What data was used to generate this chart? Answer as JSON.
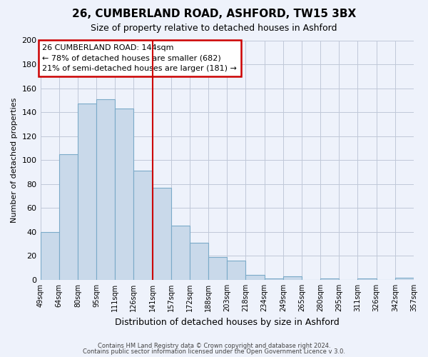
{
  "title": "26, CUMBERLAND ROAD, ASHFORD, TW15 3BX",
  "subtitle": "Size of property relative to detached houses in Ashford",
  "xlabel": "Distribution of detached houses by size in Ashford",
  "ylabel": "Number of detached properties",
  "bar_labels": [
    "49sqm",
    "64sqm",
    "80sqm",
    "95sqm",
    "111sqm",
    "126sqm",
    "141sqm",
    "157sqm",
    "172sqm",
    "188sqm",
    "203sqm",
    "218sqm",
    "234sqm",
    "249sqm",
    "265sqm",
    "280sqm",
    "295sqm",
    "311sqm",
    "326sqm",
    "342sqm",
    "357sqm"
  ],
  "bar_values": [
    40,
    105,
    147,
    151,
    143,
    91,
    77,
    45,
    31,
    19,
    16,
    4,
    1,
    3,
    0,
    1,
    0,
    1,
    0,
    2
  ],
  "bar_color": "#c9d9ea",
  "bar_edge_color": "#7baac8",
  "vline_index": 6,
  "vline_color": "#cc0000",
  "ylim": [
    0,
    200
  ],
  "yticks": [
    0,
    20,
    40,
    60,
    80,
    100,
    120,
    140,
    160,
    180,
    200
  ],
  "annotation_line1": "26 CUMBERLAND ROAD: 144sqm",
  "annotation_line2": "← 78% of detached houses are smaller (682)",
  "annotation_line3": "21% of semi-detached houses are larger (181) →",
  "bg_color": "#eef2fb",
  "grid_color": "#c0c8d8",
  "footer1": "Contains HM Land Registry data © Crown copyright and database right 2024.",
  "footer2": "Contains public sector information licensed under the Open Government Licence v 3.0."
}
